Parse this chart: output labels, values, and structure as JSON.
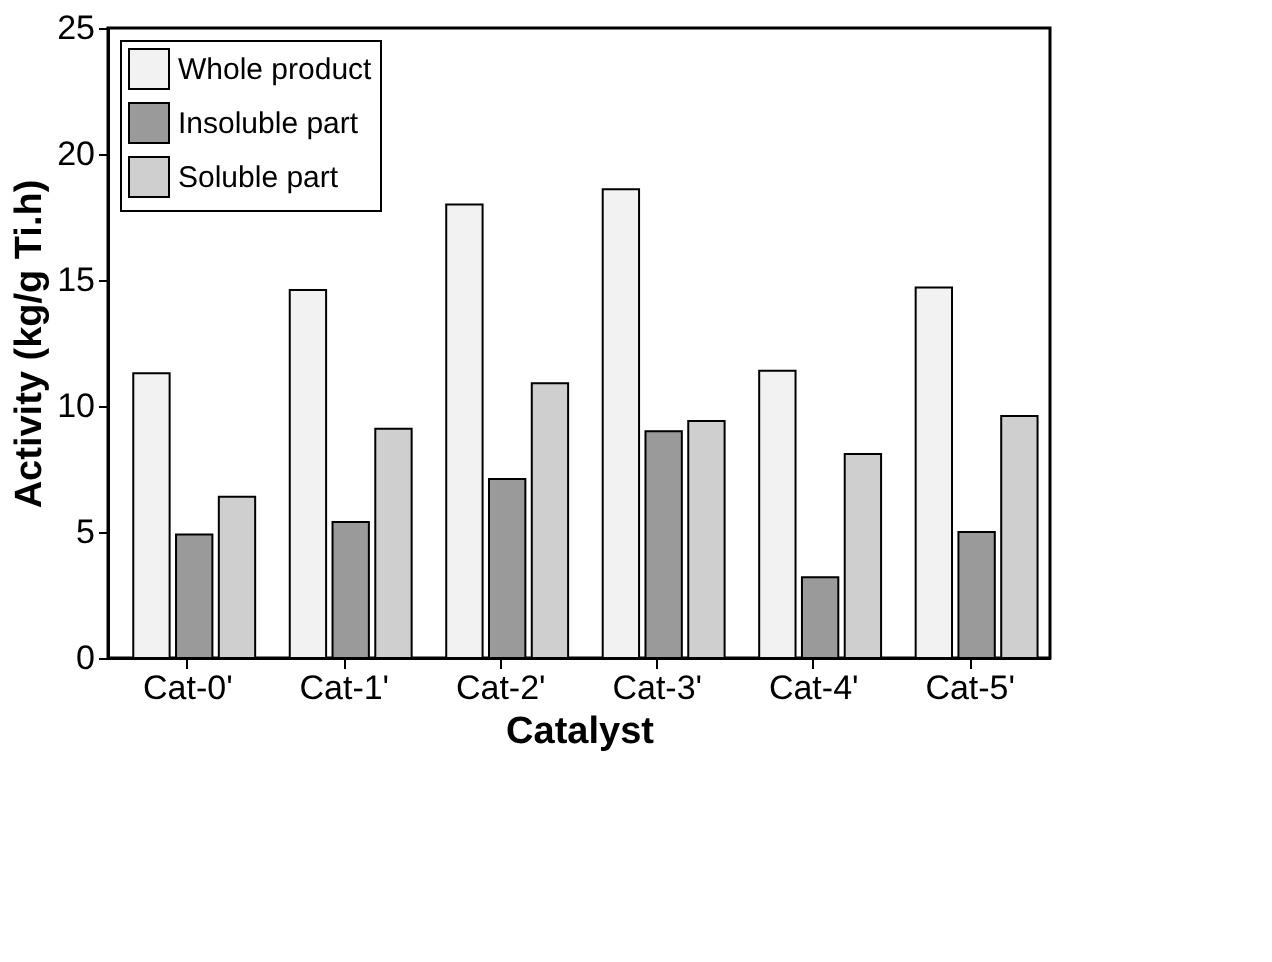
{
  "chart_data": {
    "type": "bar",
    "xlabel": "Catalyst",
    "ylabel": "Activity (kg/g Ti.h)",
    "categories": [
      "Cat-0'",
      "Cat-1'",
      "Cat-2'",
      "Cat-3'",
      "Cat-4'",
      "Cat-5'"
    ],
    "series": [
      {
        "name": "Whole product",
        "color": "#f2f2f2",
        "values": [
          11.3,
          14.6,
          18.0,
          18.6,
          11.4,
          14.7
        ]
      },
      {
        "name": "Insoluble part",
        "color": "#9a9a9a",
        "values": [
          4.9,
          5.4,
          7.1,
          9.0,
          3.2,
          5.0
        ]
      },
      {
        "name": "Soluble part",
        "color": "#cfcfcf",
        "values": [
          6.4,
          9.1,
          10.9,
          9.4,
          8.1,
          9.6
        ]
      }
    ],
    "ylim": [
      0,
      25
    ],
    "yticks": [
      0,
      5,
      10,
      15,
      20,
      25
    ],
    "grid": false,
    "legend": "top left"
  }
}
